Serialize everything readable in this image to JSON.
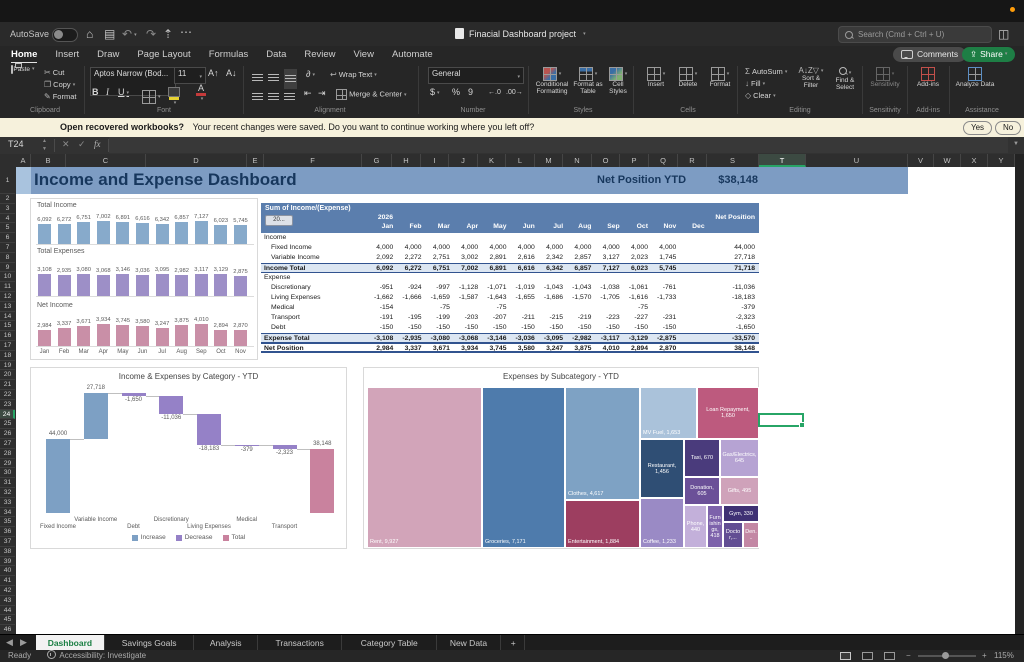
{
  "colors": {
    "banner_bg": "#7d9cc3",
    "banner_text": "#17375d",
    "pivot_header_bg": "#5b7ead",
    "total_row_bg": "#dce6f2",
    "income_bar": "#87aacb",
    "expense_bar": "#9d8fc7",
    "net_bar": "#c98fa7",
    "increase": "#7da0c4",
    "decrease": "#9581c7",
    "total": "#c9829e",
    "selection_green": "#27a566",
    "share_green": "#1e7e45",
    "active_tab_green": "#1a7f43"
  },
  "titlebar": {
    "autosave_label": "AutoSave",
    "doc_title": "Finacial Dashboard project",
    "search_placeholder": "Search (Cmd + Ctrl + U)"
  },
  "ribbon": {
    "tabs": [
      "Home",
      "Insert",
      "Draw",
      "Page Layout",
      "Formulas",
      "Data",
      "Review",
      "View",
      "Automate"
    ],
    "active_tab": "Home",
    "comments": "Comments",
    "share": "Share",
    "clipboard": {
      "paste": "Paste",
      "cut": "Cut",
      "copy": "Copy",
      "format": "Format"
    },
    "font": {
      "name": "Aptos Narrow (Bod...",
      "size": "11",
      "bold": "B",
      "italic": "I",
      "underline": "U"
    },
    "alignment": {
      "wrap": "Wrap Text",
      "merge": "Merge & Center"
    },
    "number": {
      "format": "General",
      "currency": "$",
      "percent": "%",
      "comma": "9",
      "dec_inc": ".00",
      "dec_dec": ".0"
    },
    "styles": {
      "conditional": "Conditional Formatting",
      "table": "Format as Table",
      "cell": "Cell Styles"
    },
    "cells": {
      "insert": "Insert",
      "delete": "Delete",
      "format": "Format"
    },
    "editing": {
      "autosum": "AutoSum",
      "fill": "Fill",
      "clear": "Clear",
      "sort": "Sort & Filter",
      "find": "Find & Select"
    },
    "sensitivity": "Sensitivity",
    "addins": "Add-ins",
    "analyze": "Analyze Data",
    "group_labels": [
      "Clipboard",
      "Font",
      "Alignment",
      "Number",
      "Styles",
      "Cells",
      "Editing",
      "Sensitivity",
      "Add-ins",
      "Assistance"
    ]
  },
  "notification": {
    "question": "Open recovered workbooks?",
    "message": "Your recent changes were saved. Do you want to continue working where you left off?",
    "yes": "Yes",
    "no": "No"
  },
  "formula_bar": {
    "cell_ref": "T24",
    "fx": "fx"
  },
  "grid": {
    "columns": [
      {
        "label": "A",
        "w": 15
      },
      {
        "label": "B",
        "w": 35
      },
      {
        "label": "C",
        "w": 80
      },
      {
        "label": "D",
        "w": 101
      },
      {
        "label": "E",
        "w": 17
      },
      {
        "label": "F",
        "w": 98
      },
      {
        "label": "G",
        "w": 30
      },
      {
        "label": "H",
        "w": 29
      },
      {
        "label": "I",
        "w": 28
      },
      {
        "label": "J",
        "w": 29
      },
      {
        "label": "K",
        "w": 28
      },
      {
        "label": "L",
        "w": 29
      },
      {
        "label": "M",
        "w": 28
      },
      {
        "label": "N",
        "w": 29
      },
      {
        "label": "O",
        "w": 28
      },
      {
        "label": "P",
        "w": 29
      },
      {
        "label": "Q",
        "w": 29
      },
      {
        "label": "R",
        "w": 29
      },
      {
        "label": "S",
        "w": 52
      },
      {
        "label": "T",
        "w": 47
      },
      {
        "label": "U",
        "w": 102
      },
      {
        "label": "V",
        "w": 26
      },
      {
        "label": "W",
        "w": 27
      },
      {
        "label": "X",
        "w": 27
      },
      {
        "label": "Y",
        "w": 27
      }
    ],
    "rows": 46,
    "selected_cell": "T24",
    "selected_col": "T",
    "selected_row": 24
  },
  "sheet": {
    "banner_title": "Income and Expense Dashboard",
    "net_position_label": "Net Position YTD",
    "net_position_value": "$38,148"
  },
  "pivot": {
    "title": "Sum of Income/(Expense)",
    "filter_label": "20...",
    "year": "2026",
    "col_total_label": "Net Position",
    "months": [
      "Jan",
      "Feb",
      "Mar",
      "Apr",
      "May",
      "Jun",
      "Jul",
      "Aug",
      "Sep",
      "Oct",
      "Nov",
      "Dec"
    ],
    "rows": [
      {
        "label": "Income",
        "style": "section",
        "values": [
          "",
          "",
          "",
          "",
          "",
          "",
          "",
          "",
          "",
          "",
          "",
          ""
        ],
        "total": ""
      },
      {
        "label": "Fixed Income",
        "style": "item",
        "values": [
          "4,000",
          "4,000",
          "4,000",
          "4,000",
          "4,000",
          "4,000",
          "4,000",
          "4,000",
          "4,000",
          "4,000",
          "4,000",
          ""
        ],
        "total": "44,000"
      },
      {
        "label": "Variable Income",
        "style": "item",
        "values": [
          "2,092",
          "2,272",
          "2,751",
          "3,002",
          "2,891",
          "2,616",
          "2,342",
          "2,857",
          "3,127",
          "2,023",
          "1,745",
          ""
        ],
        "total": "27,718"
      },
      {
        "label": "Income Total",
        "style": "total",
        "values": [
          "6,092",
          "6,272",
          "6,751",
          "7,002",
          "6,891",
          "6,616",
          "6,342",
          "6,857",
          "7,127",
          "6,023",
          "5,745",
          ""
        ],
        "total": "71,718"
      },
      {
        "label": "Expense",
        "style": "section",
        "values": [
          "",
          "",
          "",
          "",
          "",
          "",
          "",
          "",
          "",
          "",
          "",
          ""
        ],
        "total": ""
      },
      {
        "label": "Discretionary",
        "style": "item",
        "values": [
          "-951",
          "-924",
          "-997",
          "-1,128",
          "-1,071",
          "-1,019",
          "-1,043",
          "-1,043",
          "-1,038",
          "-1,061",
          "-761",
          ""
        ],
        "total": "-11,036"
      },
      {
        "label": "Living Expenses",
        "style": "item",
        "values": [
          "-1,662",
          "-1,666",
          "-1,659",
          "-1,587",
          "-1,643",
          "-1,655",
          "-1,686",
          "-1,570",
          "-1,705",
          "-1,616",
          "-1,733",
          ""
        ],
        "total": "-18,183"
      },
      {
        "label": "Medical",
        "style": "item",
        "values": [
          "-154",
          "",
          "-75",
          "",
          "-75",
          "",
          "",
          "",
          "",
          "-75",
          "",
          ""
        ],
        "total": "-379"
      },
      {
        "label": "Transport",
        "style": "item",
        "values": [
          "-191",
          "-195",
          "-199",
          "-203",
          "-207",
          "-211",
          "-215",
          "-219",
          "-223",
          "-227",
          "-231",
          ""
        ],
        "total": "-2,323"
      },
      {
        "label": "Debt",
        "style": "item",
        "values": [
          "-150",
          "-150",
          "-150",
          "-150",
          "-150",
          "-150",
          "-150",
          "-150",
          "-150",
          "-150",
          "-150",
          ""
        ],
        "total": "-1,650"
      },
      {
        "label": "Expense Total",
        "style": "total",
        "values": [
          "-3,108",
          "-2,935",
          "-3,080",
          "-3,068",
          "-3,146",
          "-3,036",
          "-3,095",
          "-2,982",
          "-3,117",
          "-3,129",
          "-2,875",
          ""
        ],
        "total": "-33,570"
      },
      {
        "label": "Net Position",
        "style": "grand",
        "values": [
          "2,984",
          "3,337",
          "3,671",
          "3,934",
          "3,745",
          "3,580",
          "3,247",
          "3,875",
          "4,010",
          "2,894",
          "2,870",
          ""
        ],
        "total": "38,148"
      }
    ]
  },
  "chart_data": [
    {
      "type": "bar",
      "title": "Total Income",
      "categories": [
        "Jan",
        "Feb",
        "Mar",
        "Apr",
        "May",
        "Jun",
        "Jul",
        "Aug",
        "Sep",
        "Oct",
        "Nov"
      ],
      "values": [
        6092,
        6272,
        6751,
        7002,
        6891,
        6616,
        6342,
        6857,
        7127,
        6023,
        5745
      ],
      "labels": [
        "6,092",
        "6,272",
        "6,751",
        "7,002",
        "6,891",
        "6,616",
        "6,342",
        "6,857",
        "7,127",
        "6,023",
        "5,745"
      ]
    },
    {
      "type": "bar",
      "title": "Total Expenses",
      "categories": [
        "Jan",
        "Feb",
        "Mar",
        "Apr",
        "May",
        "Jun",
        "Jul",
        "Aug",
        "Sep",
        "Oct",
        "Nov"
      ],
      "values": [
        3108,
        2935,
        3080,
        3068,
        3146,
        3036,
        3095,
        2982,
        3117,
        3129,
        2875
      ],
      "labels": [
        "3,108",
        "2,935",
        "3,080",
        "3,068",
        "3,146",
        "3,036",
        "3,095",
        "2,982",
        "3,117",
        "3,129",
        "2,875"
      ]
    },
    {
      "type": "bar",
      "title": "Net Income",
      "categories": [
        "Jan",
        "Feb",
        "Mar",
        "Apr",
        "May",
        "Jun",
        "Jul",
        "Aug",
        "Sep",
        "Oct",
        "Nov"
      ],
      "values": [
        2984,
        3337,
        3671,
        3934,
        3745,
        3580,
        3247,
        3875,
        4010,
        2894,
        2870
      ],
      "labels": [
        "2,984",
        "3,337",
        "3,671",
        "3,934",
        "3,745",
        "3,580",
        "3,247",
        "3,875",
        "4,010",
        "2,894",
        "2,870"
      ]
    },
    {
      "type": "waterfall",
      "title": "Income & Expenses by Category - YTD",
      "categories": [
        "Fixed Income",
        "Variable Income",
        "Debt",
        "Discretionary",
        "Living Expenses",
        "Medical",
        "Transport",
        "Total"
      ],
      "values": [
        44000,
        27718,
        -1650,
        -11036,
        -18183,
        -379,
        -2323,
        38148
      ],
      "labels": [
        "44,000",
        "27,718",
        "-1,650",
        "-11,036",
        "-18,183",
        "-379",
        "-2,323",
        "38,148"
      ],
      "kinds": [
        "increase",
        "increase",
        "decrease",
        "decrease",
        "decrease",
        "decrease",
        "decrease",
        "total"
      ],
      "legend": [
        "Increase",
        "Decrease",
        "Total"
      ],
      "ylim": [
        0,
        71718
      ]
    },
    {
      "type": "treemap",
      "title": "Expenses by Subcategory - YTD",
      "items": [
        {
          "name": "rent",
          "label": "Rent, 9,927",
          "value": 9927,
          "color": "#d2a4b9",
          "x": 3,
          "y": 19,
          "w": 115,
          "h": 161,
          "anchor": "bl"
        },
        {
          "name": "groceries",
          "label": "Groceries, 7,171",
          "value": 7171,
          "color": "#4e7bac",
          "x": 118,
          "y": 19,
          "w": 83,
          "h": 161,
          "anchor": "bl"
        },
        {
          "name": "clothes",
          "label": "Clothes, 4,617",
          "value": 4617,
          "color": "#7ea2c4",
          "x": 201,
          "y": 19,
          "w": 75,
          "h": 113,
          "anchor": "bl"
        },
        {
          "name": "entertainment",
          "label": "Entertainment, 1,884",
          "value": 1884,
          "color": "#9d3e60",
          "x": 201,
          "y": 132,
          "w": 75,
          "h": 48,
          "anchor": "bl"
        },
        {
          "name": "mv-fuel",
          "label": "MV Fuel, 1,653",
          "value": 1653,
          "color": "#aac2da",
          "x": 276,
          "y": 19,
          "w": 57,
          "h": 52,
          "anchor": "bl"
        },
        {
          "name": "loan-repayment",
          "label": "Loan Repayment, 1,650",
          "value": 1650,
          "color": "#bd5a7e",
          "x": 333,
          "y": 19,
          "w": 62,
          "h": 52,
          "anchor": "c"
        },
        {
          "name": "restaurant",
          "label": "Restaurant, 1,456",
          "value": 1456,
          "color": "#2f4e74",
          "x": 276,
          "y": 71,
          "w": 44,
          "h": 59,
          "anchor": "c"
        },
        {
          "name": "coffee",
          "label": "Coffee, 1,233",
          "value": 1233,
          "color": "#9a8ac5",
          "x": 276,
          "y": 130,
          "w": 44,
          "h": 50,
          "anchor": "bl"
        },
        {
          "name": "taxi",
          "label": "Taxi, 670",
          "value": 670,
          "color": "#4a3b7c",
          "x": 320,
          "y": 71,
          "w": 36,
          "h": 38,
          "anchor": "c"
        },
        {
          "name": "gas-electrics",
          "label": "Gas/Electrics, 645",
          "value": 645,
          "color": "#b6a3d3",
          "x": 356,
          "y": 71,
          "w": 39,
          "h": 38,
          "anchor": "c"
        },
        {
          "name": "donation",
          "label": "Donation, 605",
          "value": 605,
          "color": "#6b5098",
          "x": 320,
          "y": 109,
          "w": 36,
          "h": 28,
          "anchor": "c"
        },
        {
          "name": "gifts",
          "label": "Gifts, 495",
          "value": 495,
          "color": "#cfa2ba",
          "x": 356,
          "y": 109,
          "w": 39,
          "h": 28,
          "anchor": "c"
        },
        {
          "name": "phone",
          "label": "Phone, 440",
          "value": 440,
          "color": "#c3b0da",
          "x": 320,
          "y": 137,
          "w": 23,
          "h": 43,
          "anchor": "c"
        },
        {
          "name": "furnishings",
          "label": "Furnishings, 418",
          "value": 418,
          "color": "#7d62ab",
          "x": 343,
          "y": 137,
          "w": 16,
          "h": 43,
          "anchor": "c"
        },
        {
          "name": "gym",
          "label": "Gym, 330",
          "value": 330,
          "color": "#3f3174",
          "x": 359,
          "y": 137,
          "w": 36,
          "h": 17,
          "anchor": "c"
        },
        {
          "name": "doctor",
          "label": "Doctor,...",
          "value": null,
          "color": "#624e93",
          "x": 359,
          "y": 154,
          "w": 20,
          "h": 26,
          "anchor": "c"
        },
        {
          "name": "dentist",
          "label": "Den...",
          "value": null,
          "color": "#c387a4",
          "x": 379,
          "y": 154,
          "w": 16,
          "h": 26,
          "anchor": "c"
        }
      ]
    }
  ],
  "sheet_tabs": {
    "items": [
      "Dashboard",
      "Savings Goals",
      "Analysis",
      "Transactions",
      "Category Table",
      "New Data"
    ],
    "active": "Dashboard",
    "add": "+"
  },
  "status_bar": {
    "ready": "Ready",
    "accessibility": "Accessibility: Investigate",
    "zoom": "115%"
  }
}
